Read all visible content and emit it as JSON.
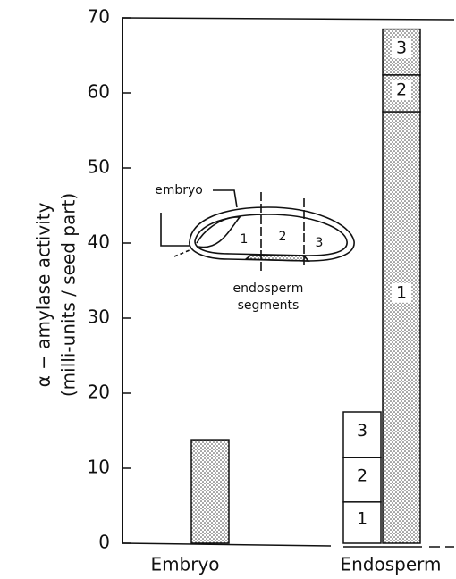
{
  "chart_data": {
    "type": "stacked_bar",
    "y_label": [
      "α − amylase activity",
      "(milli-units / seed part)"
    ],
    "ylim": [
      0,
      70
    ],
    "yticks": [
      0,
      10,
      20,
      30,
      40,
      50,
      60,
      70
    ],
    "groups": [
      {
        "category": "Embryo",
        "stacks": [
          {
            "style": "dotted",
            "segments": [
              {
                "value": 13.8
              }
            ]
          }
        ]
      },
      {
        "category": "Endosperm",
        "stacks": [
          {
            "style": "plain",
            "segments": [
              {
                "label": "1",
                "value": 5.5
              },
              {
                "label": "2",
                "value": 5.9
              },
              {
                "label": "3",
                "value": 6.1
              }
            ]
          },
          {
            "style": "dotted",
            "segments": [
              {
                "label": "1",
                "value": 57.5
              },
              {
                "label": "2",
                "value": 4.9
              },
              {
                "label": "3",
                "value": 6.1
              }
            ]
          }
        ]
      }
    ],
    "inset": {
      "embryo": "embryo",
      "caption": [
        "endosperm",
        "segments"
      ],
      "segments": [
        "1",
        "2",
        "3"
      ]
    }
  }
}
